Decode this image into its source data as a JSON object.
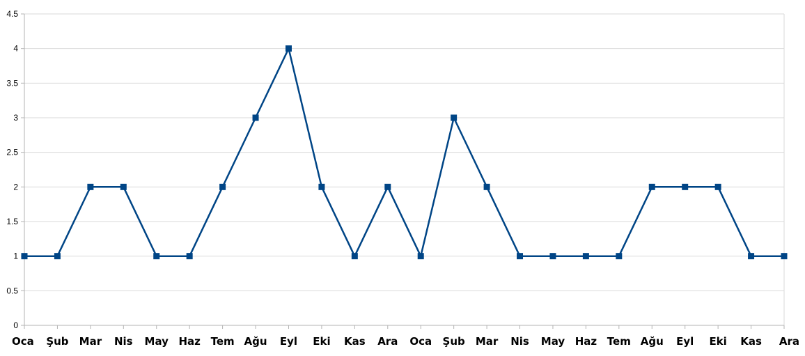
{
  "chart_data": {
    "type": "line",
    "title": "",
    "xlabel": "",
    "ylabel": "",
    "ylim": [
      0,
      4.5
    ],
    "yticks": [
      "0",
      "0.5",
      "1",
      "1.5",
      "2",
      "2.5",
      "3",
      "3.5",
      "4",
      "4.5"
    ],
    "grid": true,
    "legend": "none",
    "categories": [
      "Oca",
      "Şub",
      "Mar",
      "Nis",
      "May",
      "Haz",
      "Tem",
      "Ağu",
      "Eyl",
      "Eki",
      "Kas",
      "Ara",
      "Oca",
      "Şub",
      "Mar",
      "Nis",
      "May",
      "Haz",
      "Tem",
      "Ağu",
      "Eyl",
      "Eki",
      "Kas",
      "Ara"
    ],
    "series": [
      {
        "color": "#004586",
        "marker": "square",
        "values": [
          1,
          1,
          2,
          2,
          1,
          1,
          2,
          3,
          4,
          2,
          1,
          2,
          1,
          3,
          2,
          1,
          1,
          1,
          1,
          2,
          2,
          2,
          1,
          1
        ]
      }
    ]
  }
}
